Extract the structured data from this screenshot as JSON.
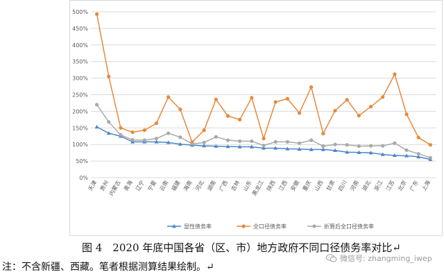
{
  "caption": "图 4　2020 年底中国各省（区、市）地方政府不同口径债务率对比↵",
  "note": "注：不含新疆、西藏。笔者根据测算结果绘制。↵",
  "watermark": "微信号: zhangming_iwep",
  "colors": {
    "explicit": "#4a86c8",
    "total": "#e8883a",
    "converted": "#a9a9a9",
    "grid": "#d9d9d9",
    "axis_text": "#595959"
  },
  "chart_data": {
    "type": "line",
    "title": "",
    "xlabel": "",
    "ylabel": "",
    "ylim": [
      0,
      500
    ],
    "yticks": [
      "0%",
      "50%",
      "100%",
      "150%",
      "200%",
      "250%",
      "300%",
      "350%",
      "400%",
      "450%",
      "500%"
    ],
    "grid": true,
    "legend_position": "bottom",
    "categories": [
      "天津",
      "贵州",
      "内蒙古",
      "青海",
      "辽宁",
      "宁夏",
      "云南",
      "福建",
      "海南",
      "河北",
      "湖南",
      "广西",
      "吉林",
      "山东",
      "黑龙江",
      "陕西",
      "江西",
      "安徽",
      "重庆",
      "山西",
      "甘肃",
      "四川",
      "河南",
      "湖北",
      "浙江",
      "江苏",
      "北京",
      "广东",
      "上海"
    ],
    "series": [
      {
        "name": "显性债务率",
        "color_key": "explicit",
        "marker": "triangle",
        "values": [
          153,
          134,
          125,
          108,
          108,
          108,
          106,
          101,
          98,
          96,
          95,
          94,
          93,
          93,
          89,
          89,
          87,
          86,
          85,
          85,
          82,
          77,
          76,
          75,
          70,
          67,
          66,
          63,
          55
        ]
      },
      {
        "name": "全口径债务率",
        "color_key": "total",
        "marker": "circle",
        "values": [
          493,
          305,
          150,
          137,
          143,
          164,
          243,
          206,
          107,
          143,
          236,
          186,
          175,
          241,
          118,
          228,
          238,
          195,
          273,
          133,
          202,
          235,
          187,
          214,
          243,
          312,
          191,
          121,
          99
        ]
      },
      {
        "name": "折算后全口径债务率",
        "color_key": "converted",
        "marker": "circle",
        "values": [
          220,
          168,
          129,
          114,
          113,
          118,
          134,
          122,
          102,
          106,
          123,
          113,
          110,
          110,
          97,
          108,
          108,
          104,
          113,
          95,
          100,
          99,
          95,
          96,
          96,
          104,
          83,
          72,
          60
        ]
      }
    ]
  }
}
